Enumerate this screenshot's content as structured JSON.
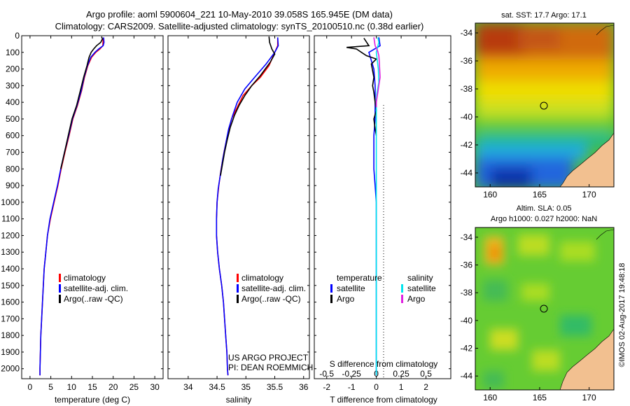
{
  "header": {
    "line1": "Argo profile: aoml 5900604_221 10-May-2010 39.058S 165.945E (DM data)",
    "line2": "Climatology: CARS2009. Satellite-adjusted climatology: synTS_20100510.nc (0.38d earlier)"
  },
  "credit": "©IMOS 02-Aug-2017 19:48:18",
  "colors": {
    "climatology": "#ff0000",
    "satellite": "#0000ff",
    "argo": "#000000",
    "salinity_satellite": "#00e5ee",
    "salinity_argo": "#e020e0"
  },
  "depth_ticks": [
    "0",
    "100",
    "200",
    "300",
    "400",
    "500",
    "600",
    "700",
    "800",
    "900",
    "1000",
    "1100",
    "1200",
    "1300",
    "1400",
    "1500",
    "1600",
    "1700",
    "1800",
    "1900",
    "2000"
  ],
  "chart_data": [
    {
      "type": "line",
      "id": "temperature",
      "xlabel": "temperature (deg C)",
      "xlim": [
        -2,
        32
      ],
      "ylim": [
        2060,
        0
      ],
      "xticks": [
        "0",
        "5",
        "10",
        "15",
        "20",
        "25",
        "30"
      ],
      "legend": [
        "climatology",
        "satellite-adj. clim.",
        "Argo(..raw -QC)"
      ],
      "legend_colors": [
        "#ff0000",
        "#0000ff",
        "#000000"
      ],
      "series": [
        {
          "color": "#ff0000",
          "points": [
            [
              17.6,
              15
            ],
            [
              17.5,
              60
            ],
            [
              16.8,
              80
            ],
            [
              15.8,
              100
            ],
            [
              14.8,
              130
            ],
            [
              13.9,
              180
            ],
            [
              13.1,
              250
            ],
            [
              12.4,
              330
            ],
            [
              11.4,
              420
            ],
            [
              10.3,
              500
            ],
            [
              9.4,
              600
            ],
            [
              8.4,
              700
            ],
            [
              7.5,
              800
            ],
            [
              6.7,
              900
            ],
            [
              5.8,
              1000
            ],
            [
              4.9,
              1100
            ],
            [
              4.2,
              1200
            ],
            [
              3.8,
              1300
            ],
            [
              3.4,
              1400
            ],
            [
              3.2,
              1500
            ],
            [
              3.0,
              1600
            ],
            [
              2.8,
              1700
            ],
            [
              2.6,
              1800
            ],
            [
              2.5,
              1900
            ],
            [
              2.4,
              2000
            ],
            [
              2.4,
              2040
            ]
          ]
        },
        {
          "color": "#0000ff",
          "points": [
            [
              17.7,
              10
            ],
            [
              17.8,
              40
            ],
            [
              17.6,
              60
            ],
            [
              16.5,
              80
            ],
            [
              15.6,
              100
            ],
            [
              14.6,
              130
            ],
            [
              13.8,
              180
            ],
            [
              13.0,
              250
            ],
            [
              12.3,
              330
            ],
            [
              11.3,
              420
            ],
            [
              10.2,
              500
            ],
            [
              9.3,
              600
            ],
            [
              8.3,
              700
            ],
            [
              7.4,
              800
            ],
            [
              6.6,
              900
            ],
            [
              5.7,
              1000
            ],
            [
              4.8,
              1100
            ],
            [
              4.2,
              1200
            ],
            [
              3.8,
              1300
            ],
            [
              3.4,
              1400
            ],
            [
              3.2,
              1500
            ],
            [
              3.0,
              1600
            ],
            [
              2.8,
              1700
            ],
            [
              2.6,
              1800
            ],
            [
              2.5,
              1900
            ],
            [
              2.4,
              2000
            ],
            [
              2.4,
              2040
            ]
          ]
        },
        {
          "color": "#000000",
          "points": [
            [
              17.2,
              5
            ],
            [
              17.4,
              20
            ],
            [
              17.0,
              40
            ],
            [
              16.0,
              60
            ],
            [
              15.3,
              80
            ],
            [
              14.7,
              100
            ],
            [
              14.2,
              130
            ],
            [
              13.7,
              180
            ],
            [
              12.9,
              250
            ],
            [
              12.1,
              330
            ],
            [
              11.2,
              420
            ],
            [
              10.1,
              500
            ],
            [
              9.2,
              600
            ],
            [
              8.3,
              700
            ],
            [
              7.4,
              800
            ]
          ]
        }
      ]
    },
    {
      "type": "line",
      "id": "salinity",
      "xlabel": "salinity",
      "xlim": [
        33.65,
        36.1
      ],
      "ylim": [
        2060,
        0
      ],
      "xticks": [
        "34",
        "34.5",
        "35",
        "35.5",
        "36"
      ],
      "legend": [
        "climatology",
        "satellite-adj. clim.",
        "Argo(..raw -QC)"
      ],
      "legend_colors": [
        "#ff0000",
        "#0000ff",
        "#000000"
      ],
      "annotation": [
        "US ARGO PROJECT",
        "PI: DEAN ROEMMICH"
      ],
      "series": [
        {
          "color": "#ff0000",
          "points": [
            [
              35.55,
              15
            ],
            [
              35.55,
              60
            ],
            [
              35.5,
              100
            ],
            [
              35.4,
              180
            ],
            [
              35.25,
              250
            ],
            [
              35.1,
              300
            ],
            [
              34.95,
              360
            ],
            [
              34.85,
              430
            ],
            [
              34.75,
              500
            ],
            [
              34.68,
              600
            ],
            [
              34.62,
              700
            ],
            [
              34.57,
              800
            ],
            [
              34.53,
              900
            ],
            [
              34.5,
              1000
            ],
            [
              34.49,
              1100
            ],
            [
              34.49,
              1200
            ],
            [
              34.51,
              1300
            ],
            [
              34.54,
              1400
            ],
            [
              34.58,
              1500
            ],
            [
              34.61,
              1600
            ],
            [
              34.63,
              1700
            ],
            [
              34.65,
              1800
            ],
            [
              34.67,
              1900
            ],
            [
              34.68,
              2000
            ],
            [
              34.69,
              2040
            ]
          ]
        },
        {
          "color": "#0000ff",
          "points": [
            [
              35.55,
              10
            ],
            [
              35.56,
              60
            ],
            [
              35.5,
              100
            ],
            [
              35.35,
              170
            ],
            [
              35.15,
              250
            ],
            [
              34.98,
              320
            ],
            [
              34.85,
              400
            ],
            [
              34.77,
              480
            ],
            [
              34.7,
              560
            ],
            [
              34.65,
              650
            ],
            [
              34.6,
              740
            ],
            [
              34.56,
              830
            ],
            [
              34.52,
              920
            ],
            [
              34.5,
              1000
            ],
            [
              34.49,
              1100
            ],
            [
              34.49,
              1200
            ],
            [
              34.51,
              1300
            ],
            [
              34.54,
              1400
            ],
            [
              34.58,
              1500
            ],
            [
              34.61,
              1600
            ],
            [
              34.63,
              1700
            ],
            [
              34.65,
              1800
            ],
            [
              34.67,
              1900
            ],
            [
              34.68,
              2000
            ],
            [
              34.69,
              2040
            ]
          ]
        },
        {
          "color": "#000000",
          "points": [
            [
              35.4,
              5
            ],
            [
              35.41,
              40
            ],
            [
              35.45,
              80
            ],
            [
              35.5,
              110
            ],
            [
              35.42,
              160
            ],
            [
              35.25,
              240
            ],
            [
              35.1,
              300
            ],
            [
              34.98,
              360
            ],
            [
              34.88,
              420
            ],
            [
              34.8,
              480
            ],
            [
              34.73,
              550
            ],
            [
              34.68,
              620
            ],
            [
              34.63,
              700
            ],
            [
              34.59,
              780
            ],
            [
              34.56,
              840
            ]
          ]
        }
      ]
    },
    {
      "type": "line",
      "id": "differences",
      "xlabel": "T difference from climatology",
      "xlabel_top": "S difference from climatology",
      "xlim": [
        -2.5,
        3
      ],
      "ylim": [
        2060,
        0
      ],
      "xticks": [
        "-2",
        "-1",
        "0",
        "1",
        "2"
      ],
      "xticks_top": [
        "-0.5",
        "-0.25",
        "0",
        "0.25",
        "0.5"
      ],
      "legend_headers": [
        "temperature",
        "salinity"
      ],
      "legend_left": [
        "satellite",
        "Argo"
      ],
      "legend_right": [
        "satellite",
        "Argo"
      ],
      "series": [
        {
          "color": "#0000ff",
          "points": [
            [
              0.1,
              10
            ],
            [
              0.15,
              60
            ],
            [
              -0.3,
              100
            ],
            [
              -0.2,
              150
            ],
            [
              -0.1,
              200
            ],
            [
              -0.05,
              300
            ],
            [
              -0.05,
              400
            ],
            [
              -0.05,
              500
            ],
            [
              -0.1,
              600
            ],
            [
              -0.1,
              700
            ],
            [
              -0.1,
              800
            ],
            [
              -0.05,
              900
            ],
            [
              0,
              1000
            ],
            [
              0,
              1200
            ],
            [
              0,
              1600
            ],
            [
              0,
              2040
            ]
          ]
        },
        {
          "color": "#000000",
          "points": [
            [
              -0.5,
              15
            ],
            [
              -0.3,
              60
            ],
            [
              -1.2,
              70
            ],
            [
              -0.8,
              80
            ],
            [
              -0.6,
              100
            ],
            [
              -0.4,
              120
            ],
            [
              0,
              140
            ],
            [
              -0.2,
              170
            ],
            [
              -0.15,
              210
            ],
            [
              -0.1,
              250
            ],
            [
              -0.15,
              300
            ],
            [
              -0.1,
              340
            ],
            [
              -0.05,
              400
            ],
            [
              0,
              450
            ],
            [
              -0.1,
              500
            ],
            [
              -0.05,
              560
            ],
            [
              0,
              600
            ]
          ]
        },
        {
          "color": "#00e5ee",
          "points": [
            [
              0.06,
              10
            ],
            [
              0.1,
              40
            ],
            [
              0,
              100
            ],
            [
              0.08,
              200
            ],
            [
              0.1,
              280
            ],
            [
              0.02,
              350
            ],
            [
              0,
              400
            ],
            [
              0,
              450
            ],
            [
              0,
              600
            ],
            [
              0,
              800
            ],
            [
              0,
              1000
            ],
            [
              0,
              1400
            ],
            [
              0,
              2040
            ]
          ]
        },
        {
          "color": "#e020e0",
          "points": [
            [
              -0.1,
              10
            ],
            [
              -0.05,
              60
            ],
            [
              0.05,
              90
            ],
            [
              0.1,
              120
            ],
            [
              0.12,
              160
            ],
            [
              0.15,
              250
            ],
            [
              0.1,
              300
            ],
            [
              0.05,
              350
            ],
            [
              0,
              400
            ],
            [
              0,
              430
            ]
          ]
        }
      ]
    },
    {
      "type": "heatmap",
      "id": "sst_map",
      "title": "sat. SST: 17.7 Argo: 17.1",
      "xticks": [
        "160",
        "165",
        "170"
      ],
      "yticks": [
        "-34",
        "-36",
        "-38",
        "-40",
        "-42",
        "-44"
      ],
      "xlim": [
        158.5,
        172.5
      ],
      "ylim": [
        -45,
        -33.3
      ],
      "marker": [
        165.945,
        -39.058
      ]
    },
    {
      "type": "heatmap",
      "id": "sla_map",
      "title": "Altim. SLA: 0.05",
      "subtitle": "Argo h1000: 0.027 h2000: NaN",
      "xticks": [
        "160",
        "165",
        "170"
      ],
      "yticks": [
        "-34",
        "-36",
        "-38",
        "-40",
        "-42",
        "-44"
      ],
      "xlim": [
        158.5,
        172.5
      ],
      "ylim": [
        -45,
        -33.3
      ],
      "marker": [
        165.945,
        -39.058
      ]
    }
  ]
}
